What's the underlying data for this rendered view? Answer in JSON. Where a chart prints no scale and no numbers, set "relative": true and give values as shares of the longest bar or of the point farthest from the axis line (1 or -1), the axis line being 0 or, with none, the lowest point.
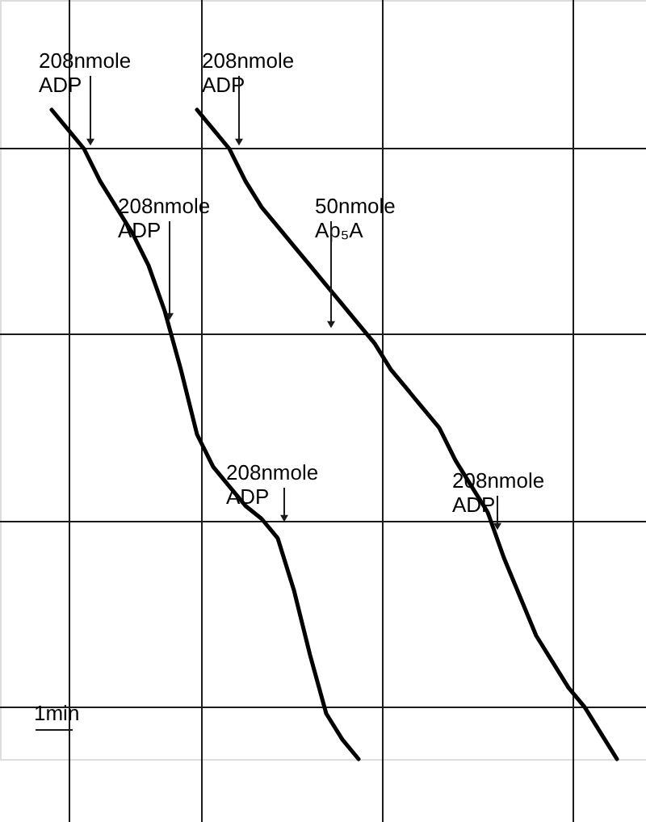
{
  "chart_data": {
    "type": "line",
    "relative": true,
    "grid": true,
    "marker": "none",
    "line_style": "solid",
    "categories": [
      null,
      null,
      null,
      null,
      null,
      null,
      null,
      null,
      null,
      null,
      null,
      null,
      null,
      null,
      null,
      null,
      null,
      null,
      null,
      null,
      null,
      null,
      null,
      null,
      null,
      null,
      null,
      null,
      null,
      null,
      null,
      null,
      null,
      null,
      null,
      null
    ],
    "series": [
      {
        "color": "#000000",
        "values": [
          1.0,
          0.97,
          0.94,
          0.89,
          0.85,
          0.81,
          0.76,
          0.69,
          0.6,
          0.5,
          0.45,
          0.42,
          0.39,
          0.37,
          0.34,
          0.26,
          0.16,
          0.07,
          0.03,
          0,
          null,
          null,
          null,
          null,
          null,
          null,
          null,
          null,
          null,
          null,
          null,
          null,
          null,
          null,
          null,
          null
        ]
      },
      {
        "color": "#000000",
        "values": [
          null,
          null,
          null,
          null,
          null,
          null,
          null,
          null,
          null,
          1.0,
          0.97,
          0.94,
          0.89,
          0.85,
          0.82,
          0.79,
          0.76,
          0.73,
          0.7,
          0.67,
          0.64,
          0.6,
          0.57,
          0.54,
          0.51,
          0.46,
          0.42,
          0.38,
          0.31,
          0.25,
          0.19,
          0.15,
          0.11,
          0.08,
          0.04,
          0
        ]
      }
    ],
    "annotations": [
      "208nmole ADP",
      "208nmole ADP",
      "208nmole ADP",
      "50nmole Ap₅A",
      "208nmole ADP",
      "208nmole ADP",
      "1min"
    ]
  }
}
